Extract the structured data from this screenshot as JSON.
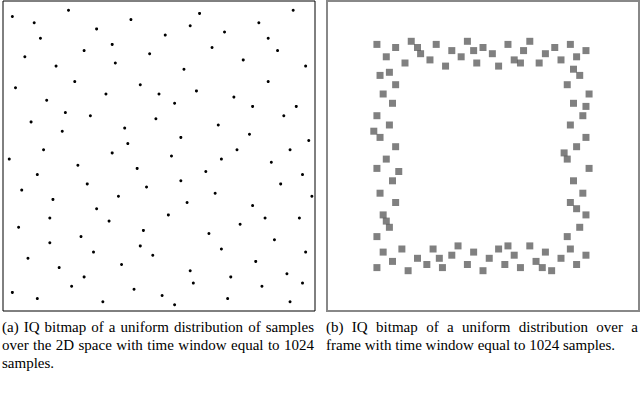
{
  "chart_data": [
    {
      "type": "scatter",
      "caption": "(a) IQ bitmap of a uniform distribution of samples over the 2D space with time window equal to 1024 samples.",
      "xlim": [
        0,
        100
      ],
      "ylim": [
        0,
        100
      ],
      "tick_labels": false,
      "grid": false,
      "marker": "circle",
      "color": "#000000",
      "values": [
        [
          3,
          95
        ],
        [
          12,
          88
        ],
        [
          21,
          97
        ],
        [
          30,
          91
        ],
        [
          41,
          94
        ],
        [
          52,
          89
        ],
        [
          63,
          96
        ],
        [
          71,
          90
        ],
        [
          82,
          93
        ],
        [
          93,
          97
        ],
        [
          7,
          82
        ],
        [
          17,
          79
        ],
        [
          26,
          84
        ],
        [
          36,
          80
        ],
        [
          47,
          83
        ],
        [
          58,
          78
        ],
        [
          67,
          85
        ],
        [
          77,
          81
        ],
        [
          88,
          84
        ],
        [
          97,
          79
        ],
        [
          4,
          72
        ],
        [
          14,
          68
        ],
        [
          23,
          74
        ],
        [
          33,
          70
        ],
        [
          44,
          73
        ],
        [
          55,
          67
        ],
        [
          62,
          71
        ],
        [
          74,
          69
        ],
        [
          85,
          74
        ],
        [
          94,
          66
        ],
        [
          9,
          61
        ],
        [
          19,
          58
        ],
        [
          28,
          63
        ],
        [
          39,
          59
        ],
        [
          49,
          62
        ],
        [
          57,
          56
        ],
        [
          69,
          60
        ],
        [
          79,
          57
        ],
        [
          90,
          63
        ],
        [
          98,
          55
        ],
        [
          2,
          49
        ],
        [
          13,
          52
        ],
        [
          24,
          47
        ],
        [
          35,
          51
        ],
        [
          43,
          46
        ],
        [
          54,
          50
        ],
        [
          65,
          45
        ],
        [
          75,
          52
        ],
        [
          86,
          48
        ],
        [
          96,
          44
        ],
        [
          6,
          39
        ],
        [
          16,
          36
        ],
        [
          27,
          41
        ],
        [
          37,
          37
        ],
        [
          46,
          40
        ],
        [
          59,
          35
        ],
        [
          68,
          38
        ],
        [
          80,
          34
        ],
        [
          89,
          41
        ],
        [
          99,
          37
        ],
        [
          5,
          27
        ],
        [
          15,
          30
        ],
        [
          25,
          24
        ],
        [
          34,
          29
        ],
        [
          45,
          26
        ],
        [
          53,
          31
        ],
        [
          66,
          25
        ],
        [
          76,
          28
        ],
        [
          87,
          23
        ],
        [
          95,
          30
        ],
        [
          8,
          17
        ],
        [
          18,
          14
        ],
        [
          29,
          19
        ],
        [
          38,
          15
        ],
        [
          48,
          18
        ],
        [
          60,
          13
        ],
        [
          70,
          20
        ],
        [
          81,
          16
        ],
        [
          91,
          12
        ],
        [
          97,
          19
        ],
        [
          3,
          6
        ],
        [
          11,
          4
        ],
        [
          22,
          8
        ],
        [
          32,
          3
        ],
        [
          42,
          7
        ],
        [
          51,
          5
        ],
        [
          61,
          9
        ],
        [
          72,
          4
        ],
        [
          83,
          8
        ],
        [
          92,
          3
        ],
        [
          10,
          93
        ],
        [
          35,
          86
        ],
        [
          60,
          92
        ],
        [
          85,
          88
        ],
        [
          20,
          64
        ],
        [
          50,
          70
        ],
        [
          80,
          66
        ],
        [
          11,
          44
        ],
        [
          40,
          54
        ],
        [
          70,
          49
        ],
        [
          92,
          52
        ],
        [
          30,
          33
        ],
        [
          57,
          42
        ],
        [
          84,
          30
        ],
        [
          15,
          22
        ],
        [
          44,
          21
        ],
        [
          73,
          11
        ],
        [
          26,
          11
        ],
        [
          55,
          2
        ],
        [
          96,
          9
        ]
      ]
    },
    {
      "type": "scatter",
      "caption": "(b) IQ bitmap of a uniform distribution over a frame with time window equal to 1024 samples.",
      "xlim": [
        0,
        100
      ],
      "ylim": [
        0,
        100
      ],
      "tick_labels": false,
      "grid": false,
      "marker": "square",
      "color": "#555555",
      "values": [
        [
          16,
          86
        ],
        [
          19,
          82
        ],
        [
          22,
          85
        ],
        [
          25,
          80
        ],
        [
          27,
          87
        ],
        [
          30,
          83
        ],
        [
          33,
          81
        ],
        [
          35,
          86
        ],
        [
          38,
          79
        ],
        [
          40,
          84
        ],
        [
          43,
          82
        ],
        [
          45,
          87
        ],
        [
          48,
          80
        ],
        [
          50,
          85
        ],
        [
          53,
          83
        ],
        [
          55,
          79
        ],
        [
          58,
          86
        ],
        [
          60,
          81
        ],
        [
          63,
          84
        ],
        [
          65,
          87
        ],
        [
          68,
          80
        ],
        [
          70,
          83
        ],
        [
          73,
          85
        ],
        [
          75,
          81
        ],
        [
          78,
          86
        ],
        [
          80,
          82
        ],
        [
          83,
          84
        ],
        [
          29,
          85
        ],
        [
          47,
          84
        ],
        [
          62,
          80
        ],
        [
          16,
          14
        ],
        [
          18,
          19
        ],
        [
          21,
          16
        ],
        [
          24,
          20
        ],
        [
          26,
          13
        ],
        [
          29,
          17
        ],
        [
          32,
          15
        ],
        [
          34,
          20
        ],
        [
          37,
          14
        ],
        [
          40,
          18
        ],
        [
          42,
          21
        ],
        [
          45,
          15
        ],
        [
          47,
          19
        ],
        [
          50,
          13
        ],
        [
          52,
          17
        ],
        [
          55,
          20
        ],
        [
          57,
          15
        ],
        [
          60,
          18
        ],
        [
          62,
          14
        ],
        [
          65,
          21
        ],
        [
          67,
          16
        ],
        [
          70,
          19
        ],
        [
          72,
          13
        ],
        [
          75,
          17
        ],
        [
          78,
          20
        ],
        [
          80,
          15
        ],
        [
          83,
          18
        ],
        [
          36,
          17
        ],
        [
          58,
          21
        ],
        [
          69,
          14
        ],
        [
          16,
          24
        ],
        [
          20,
          27
        ],
        [
          18,
          31
        ],
        [
          22,
          35
        ],
        [
          17,
          38
        ],
        [
          21,
          42
        ],
        [
          16,
          46
        ],
        [
          19,
          49
        ],
        [
          22,
          53
        ],
        [
          17,
          56
        ],
        [
          20,
          60
        ],
        [
          16,
          63
        ],
        [
          21,
          67
        ],
        [
          18,
          70
        ],
        [
          22,
          73
        ],
        [
          17,
          76
        ],
        [
          19,
          29
        ],
        [
          23,
          45
        ],
        [
          15,
          58
        ],
        [
          20,
          77
        ],
        [
          77,
          24
        ],
        [
          81,
          27
        ],
        [
          83,
          31
        ],
        [
          78,
          35
        ],
        [
          82,
          38
        ],
        [
          79,
          42
        ],
        [
          84,
          46
        ],
        [
          77,
          49
        ],
        [
          80,
          53
        ],
        [
          83,
          56
        ],
        [
          78,
          60
        ],
        [
          82,
          63
        ],
        [
          79,
          67
        ],
        [
          84,
          70
        ],
        [
          77,
          73
        ],
        [
          81,
          76
        ],
        [
          80,
          33
        ],
        [
          76,
          51
        ],
        [
          83,
          66
        ],
        [
          79,
          78
        ]
      ]
    }
  ]
}
